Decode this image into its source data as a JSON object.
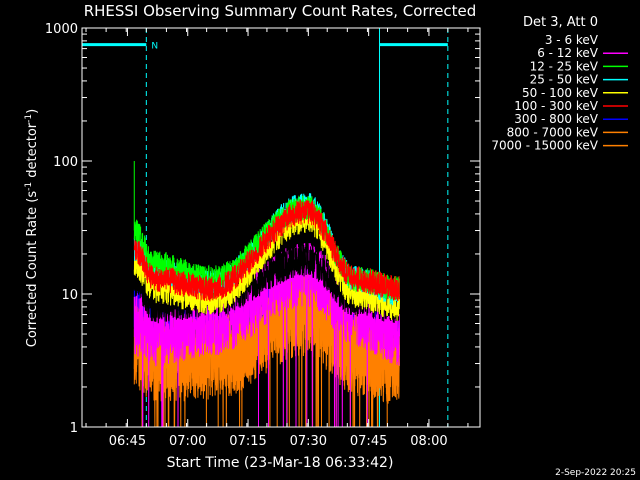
{
  "chart_data": {
    "type": "line",
    "title": "RHESSI Observing Summary Count Rates, Corrected",
    "xlabel": "Start Time (23-Mar-18 06:33:42)",
    "ylabel_main": "Corrected Count Rate (s",
    "ylabel_exp1": "-1",
    "ylabel_mid": " detector",
    "ylabel_exp2": "-1",
    "ylabel_end": ")",
    "y_scale": "log",
    "ylim": [
      1,
      1000
    ],
    "xlim_minutes": [
      0,
      99
    ],
    "x_ticks": [
      {
        "minute": 11.3,
        "label": "06:45"
      },
      {
        "minute": 26.3,
        "label": "07:00"
      },
      {
        "minute": 41.3,
        "label": "07:15"
      },
      {
        "minute": 56.3,
        "label": "07:30"
      },
      {
        "minute": 71.3,
        "label": "07:45"
      },
      {
        "minute": 86.3,
        "label": "08:00"
      }
    ],
    "y_ticks": [
      {
        "value": 1,
        "label": "1"
      },
      {
        "value": 10,
        "label": "10"
      },
      {
        "value": 100,
        "label": "100"
      },
      {
        "value": 1000,
        "label": "1000"
      }
    ],
    "legend_header": "Det 3, Att 0",
    "legend_position": "right",
    "grid": false,
    "series": [
      {
        "name": "3 - 6 keV",
        "color": "#000000",
        "profile": [
          [
            13,
            13
          ],
          [
            18,
            8
          ],
          [
            32,
            9
          ],
          [
            56,
            18
          ],
          [
            68,
            9
          ],
          [
            79,
            8
          ]
        ]
      },
      {
        "name": "6 - 12 keV",
        "color": "#ff00ff",
        "profile": [
          [
            13,
            6
          ],
          [
            18,
            5
          ],
          [
            32,
            6
          ],
          [
            56,
            14
          ],
          [
            68,
            7
          ],
          [
            79,
            5
          ]
        ]
      },
      {
        "name": "12 - 25 keV",
        "color": "#00ff00",
        "profile": [
          [
            13,
            30
          ],
          [
            18,
            17
          ],
          [
            32,
            13
          ],
          [
            56,
            45
          ],
          [
            68,
            13
          ],
          [
            79,
            11
          ]
        ]
      },
      {
        "name": "25 - 50 keV",
        "color": "#00ffff",
        "profile": [
          [
            13,
            22
          ],
          [
            18,
            15
          ],
          [
            32,
            12
          ],
          [
            56,
            47
          ],
          [
            68,
            13
          ],
          [
            79,
            10
          ]
        ]
      },
      {
        "name": "50 - 100 keV",
        "color": "#ffff00",
        "profile": [
          [
            13,
            17
          ],
          [
            18,
            11
          ],
          [
            32,
            9
          ],
          [
            56,
            37
          ],
          [
            68,
            10
          ],
          [
            79,
            8
          ]
        ]
      },
      {
        "name": "100 - 300 keV",
        "color": "#ff0000",
        "profile": [
          [
            13,
            22
          ],
          [
            18,
            13
          ],
          [
            32,
            11
          ],
          [
            56,
            42
          ],
          [
            68,
            13
          ],
          [
            79,
            11
          ]
        ]
      },
      {
        "name": "300 - 800 keV",
        "color": "#0000ff",
        "profile": [
          [
            13,
            8
          ],
          [
            18,
            6
          ],
          [
            32,
            6
          ],
          [
            56,
            12
          ],
          [
            68,
            6
          ],
          [
            79,
            5
          ]
        ]
      },
      {
        "name": "800 - 7000 keV",
        "color": "#ff8000",
        "profile": [
          [
            13,
            4.5
          ],
          [
            18,
            3.5
          ],
          [
            32,
            3.5
          ],
          [
            56,
            8
          ],
          [
            68,
            4
          ],
          [
            79,
            3
          ]
        ]
      },
      {
        "name": "7000 - 15000 keV",
        "color": "#ff8000",
        "profile": [
          [
            13,
            4
          ],
          [
            18,
            3.2
          ],
          [
            32,
            3.2
          ],
          [
            56,
            7
          ],
          [
            68,
            3.5
          ],
          [
            79,
            3
          ]
        ]
      }
    ],
    "flags": {
      "night_label": "N",
      "color": "#00ffff",
      "level": 750,
      "bars": [
        [
          0,
          16
        ],
        [
          74,
          91
        ]
      ],
      "solid_lines": [
        0,
        74
      ],
      "dashed_lines": [
        16,
        91
      ]
    }
  },
  "footer": {
    "date": "2-Sep-2022 20:25"
  }
}
